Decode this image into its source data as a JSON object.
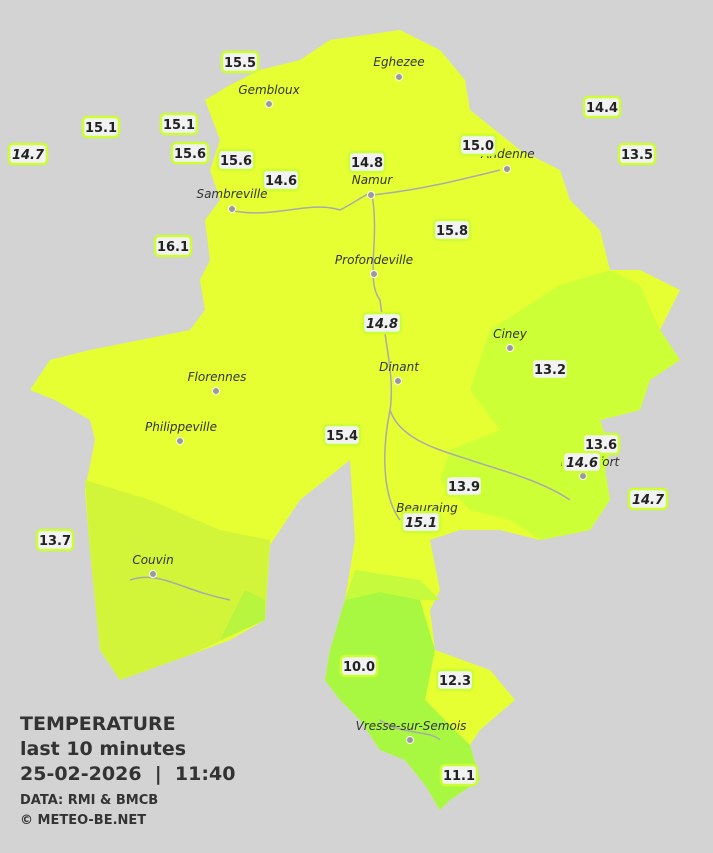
{
  "legend": {
    "title": "TEMPERATURE",
    "subtitle": "last 10 minutes",
    "datetime": "25-02-2026  |  11:40",
    "source": "DATA: RMI & BMCB",
    "copyright": "© METEO-BE.NET"
  },
  "places": [
    "Eghezee",
    "Gembloux",
    "Andenne",
    "Namur",
    "Sambreville",
    "Profondeville",
    "Ciney",
    "Dinant",
    "Florennes",
    "Philippeville",
    "Couvin",
    "Vresse-sur-Semois",
    "Beauraing",
    "Rochefort"
  ],
  "stations": [
    {
      "label": "15.5",
      "italic": false
    },
    {
      "label": "15.1",
      "italic": false
    },
    {
      "label": "15.1",
      "italic": false
    },
    {
      "label": "14.7",
      "italic": true
    },
    {
      "label": "15.6",
      "italic": false
    },
    {
      "label": "15.6",
      "italic": false
    },
    {
      "label": "14.6",
      "italic": false
    },
    {
      "label": "14.8",
      "italic": false
    },
    {
      "label": "15.0",
      "italic": false
    },
    {
      "label": "14.4",
      "italic": false
    },
    {
      "label": "13.5",
      "italic": false
    },
    {
      "label": "16.1",
      "italic": false
    },
    {
      "label": "15.8",
      "italic": false
    },
    {
      "label": "14.8",
      "italic": true
    },
    {
      "label": "13.2",
      "italic": false
    },
    {
      "label": "15.4",
      "italic": false
    },
    {
      "label": "13.6",
      "italic": false
    },
    {
      "label": "14.6",
      "italic": true
    },
    {
      "label": "13.9",
      "italic": false
    },
    {
      "label": "14.7",
      "italic": true
    },
    {
      "label": "15.1",
      "italic": true
    },
    {
      "label": "13.7",
      "italic": false
    },
    {
      "label": "10.0",
      "italic": false
    },
    {
      "label": "12.3",
      "italic": false
    },
    {
      "label": "11.1",
      "italic": false
    }
  ]
}
